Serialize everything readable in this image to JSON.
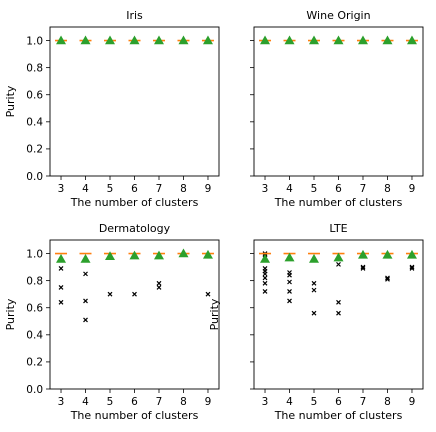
{
  "chart_data": [
    {
      "type": "scatter",
      "title": "Iris",
      "xlabel": "The number of clusters",
      "ylabel": "Purity",
      "xticks": [
        3,
        4,
        5,
        6,
        7,
        8,
        9
      ],
      "yticks": [
        "0.0",
        "0.2",
        "0.4",
        "0.6",
        "0.8",
        "1.0"
      ],
      "ylim": [
        0,
        1.1
      ],
      "show_yticklabels": true,
      "series": [
        {
          "name": "",
          "marker": "line",
          "color": "#ff7f0e",
          "x": [
            3,
            4,
            5,
            6,
            7,
            8,
            9
          ],
          "y": [
            1,
            1,
            1,
            1,
            1,
            1,
            1
          ]
        },
        {
          "name": "",
          "marker": "triangle",
          "color": "#2ca02c",
          "x": [
            3,
            4,
            5,
            6,
            7,
            8,
            9
          ],
          "y": [
            1,
            1,
            1,
            1,
            1,
            1,
            1
          ]
        }
      ],
      "points": []
    },
    {
      "type": "scatter",
      "title": "Wine Origin",
      "xlabel": "The number of clusters",
      "ylabel": "",
      "xticks": [
        3,
        4,
        5,
        6,
        7,
        8,
        9
      ],
      "yticks": [
        "0.0",
        "0.2",
        "0.4",
        "0.6",
        "0.8",
        "1.0"
      ],
      "ylim": [
        0,
        1.1
      ],
      "show_yticklabels": false,
      "series": [
        {
          "name": "",
          "marker": "line",
          "color": "#ff7f0e",
          "x": [
            3,
            4,
            5,
            6,
            7,
            8,
            9
          ],
          "y": [
            1,
            1,
            1,
            1,
            1,
            1,
            1
          ]
        },
        {
          "name": "",
          "marker": "triangle",
          "color": "#2ca02c",
          "x": [
            3,
            4,
            5,
            6,
            7,
            8,
            9
          ],
          "y": [
            1,
            1,
            1,
            1,
            1,
            1,
            1
          ]
        }
      ],
      "points": []
    },
    {
      "type": "scatter",
      "title": "Dermatology",
      "xlabel": "The number of clusters",
      "ylabel": "Purity",
      "xticks": [
        3,
        4,
        5,
        6,
        7,
        8,
        9
      ],
      "yticks": [
        "0.0",
        "0.2",
        "0.4",
        "0.6",
        "0.8",
        "1.0"
      ],
      "ylim": [
        0,
        1.1
      ],
      "show_yticklabels": true,
      "series": [
        {
          "name": "",
          "marker": "line",
          "color": "#ff7f0e",
          "x": [
            3,
            4,
            5,
            6,
            7,
            8,
            9
          ],
          "y": [
            1,
            1,
            1,
            1,
            1,
            1,
            1
          ]
        },
        {
          "name": "",
          "marker": "triangle",
          "color": "#2ca02c",
          "x": [
            3,
            4,
            5,
            6,
            7,
            8,
            9
          ],
          "y": [
            0.96,
            0.96,
            0.98,
            0.985,
            0.985,
            1.0,
            0.99
          ]
        }
      ],
      "points": [
        {
          "x": 3,
          "y": 0.89
        },
        {
          "x": 3,
          "y": 0.75
        },
        {
          "x": 3,
          "y": 0.64
        },
        {
          "x": 4,
          "y": 0.85
        },
        {
          "x": 4,
          "y": 0.65
        },
        {
          "x": 4,
          "y": 0.51
        },
        {
          "x": 5,
          "y": 0.7
        },
        {
          "x": 6,
          "y": 0.7
        },
        {
          "x": 7,
          "y": 0.78
        },
        {
          "x": 7,
          "y": 0.75
        },
        {
          "x": 9,
          "y": 0.7
        }
      ]
    },
    {
      "type": "scatter",
      "title": "LTE",
      "xlabel": "The number of clusters",
      "ylabel": "Purity",
      "xticks": [
        3,
        4,
        5,
        6,
        7,
        8,
        9
      ],
      "yticks": [
        "0.0",
        "0.2",
        "0.4",
        "0.6",
        "0.8",
        "1.0"
      ],
      "ylim": [
        0,
        1.1
      ],
      "show_yticklabels": false,
      "series": [
        {
          "name": "",
          "marker": "line",
          "color": "#ff7f0e",
          "x": [
            3,
            4,
            5,
            6,
            7,
            8,
            9
          ],
          "y": [
            1,
            1,
            1,
            1,
            1,
            1,
            1
          ]
        },
        {
          "name": "",
          "marker": "triangle",
          "color": "#2ca02c",
          "x": [
            3,
            4,
            5,
            6,
            7,
            8,
            9
          ],
          "y": [
            0.96,
            0.97,
            0.96,
            0.97,
            0.99,
            0.99,
            0.99
          ]
        }
      ],
      "points": [
        {
          "x": 3,
          "y": 1.0
        },
        {
          "x": 3,
          "y": 0.99
        },
        {
          "x": 3,
          "y": 0.89
        },
        {
          "x": 3,
          "y": 0.87
        },
        {
          "x": 3,
          "y": 0.85
        },
        {
          "x": 3,
          "y": 0.82
        },
        {
          "x": 3,
          "y": 0.78
        },
        {
          "x": 3,
          "y": 0.72
        },
        {
          "x": 4,
          "y": 0.86
        },
        {
          "x": 4,
          "y": 0.84
        },
        {
          "x": 4,
          "y": 0.79
        },
        {
          "x": 4,
          "y": 0.72
        },
        {
          "x": 4,
          "y": 0.65
        },
        {
          "x": 5,
          "y": 0.78
        },
        {
          "x": 5,
          "y": 0.73
        },
        {
          "x": 5,
          "y": 0.56
        },
        {
          "x": 6,
          "y": 0.92
        },
        {
          "x": 6,
          "y": 0.64
        },
        {
          "x": 6,
          "y": 0.56
        },
        {
          "x": 7,
          "y": 0.9
        },
        {
          "x": 7,
          "y": 0.89
        },
        {
          "x": 8,
          "y": 0.82
        },
        {
          "x": 8,
          "y": 0.81
        },
        {
          "x": 9,
          "y": 0.9
        },
        {
          "x": 9,
          "y": 0.89
        }
      ]
    }
  ]
}
